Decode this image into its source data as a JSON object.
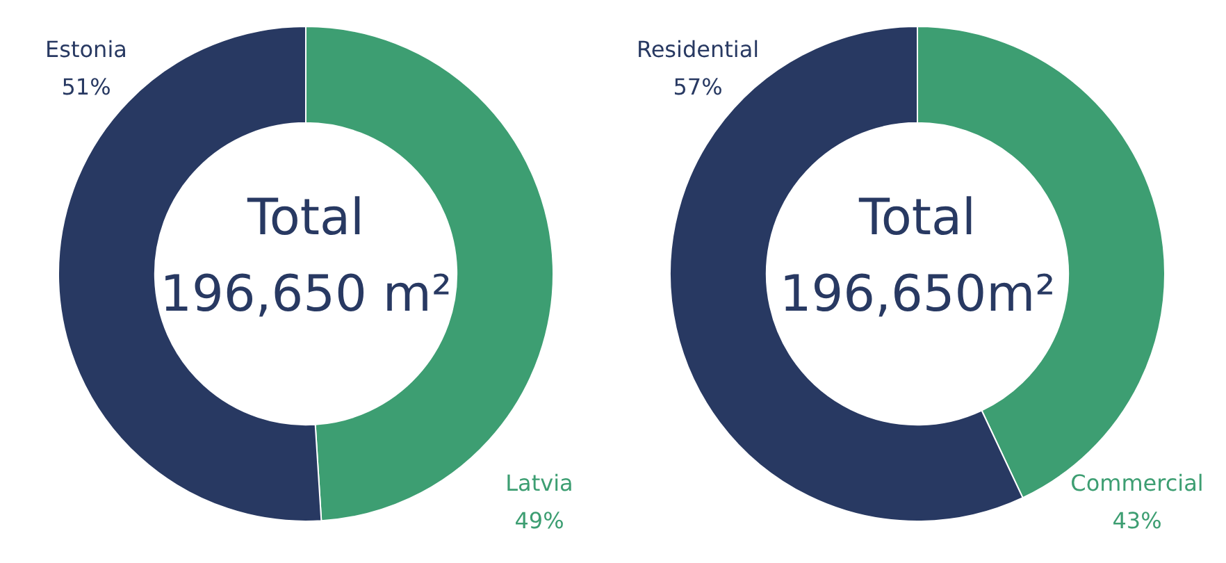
{
  "chart_data": [
    {
      "type": "donut",
      "categories": [
        "Latvia",
        "Estonia"
      ],
      "values": [
        49,
        51
      ],
      "value_labels": [
        "49%",
        "51%"
      ],
      "colors": [
        "#3d9e72",
        "#283962"
      ],
      "legend": false,
      "annotations": [
        "Total",
        "196,650 m²"
      ]
    },
    {
      "type": "donut",
      "categories": [
        "Commercial",
        "Residential"
      ],
      "values": [
        43,
        57
      ],
      "value_labels": [
        "43%",
        "57%"
      ],
      "colors": [
        "#3d9e72",
        "#283962"
      ],
      "legend": false,
      "annotations": [
        "Total",
        "196,650m²"
      ]
    }
  ]
}
